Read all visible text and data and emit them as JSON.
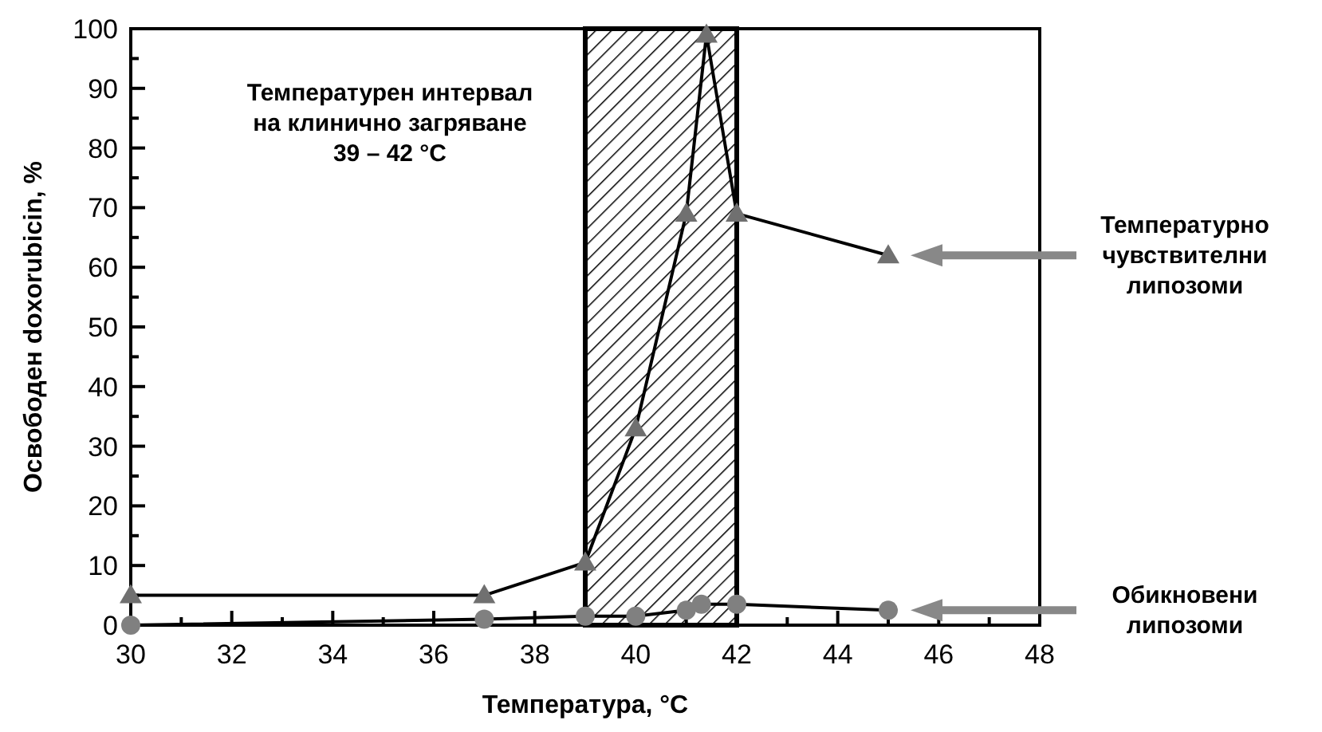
{
  "chart_data": {
    "type": "line",
    "xlabel": "Температура, °C",
    "ylabel": "Освободен doxorubicin, %",
    "xlim": [
      30,
      48
    ],
    "ylim": [
      0,
      100
    ],
    "xticks": [
      30,
      {
        "value": 31,
        "label": null
      },
      32,
      {
        "value": 33,
        "label": null
      },
      34,
      {
        "value": 35,
        "label": null
      },
      36,
      {
        "value": 37,
        "label": null
      },
      38,
      {
        "value": 39,
        "label": null
      },
      40,
      {
        "value": 41,
        "label": null
      },
      42,
      {
        "value": 43,
        "label": null
      },
      44,
      {
        "value": 45,
        "label": null
      },
      46,
      {
        "value": 47,
        "label": null
      },
      48
    ],
    "yticks": [
      0,
      {
        "value": 5,
        "label": null
      },
      10,
      {
        "value": 15,
        "label": null
      },
      20,
      {
        "value": 25,
        "label": null
      },
      30,
      {
        "value": 35,
        "label": null
      },
      40,
      {
        "value": 45,
        "label": null
      },
      50,
      {
        "value": 55,
        "label": null
      },
      60,
      {
        "value": 65,
        "label": null
      },
      70,
      {
        "value": 75,
        "label": null
      },
      80,
      {
        "value": 85,
        "label": null
      },
      90,
      {
        "value": 95,
        "label": null
      },
      100
    ],
    "grid": false,
    "bands": [
      {
        "axis": "x",
        "from": 39,
        "to": 42,
        "label": "Температурен интервал на клинично загряване 39 – 42 °C"
      }
    ],
    "series": [
      {
        "name": "Температурно чувствителни липозоми",
        "color": "#707070",
        "marker": "triangle",
        "x": [
          30,
          37,
          39,
          40,
          41,
          41.4,
          42,
          45
        ],
        "values": [
          5,
          5,
          10.5,
          33,
          69,
          99,
          69,
          62
        ]
      },
      {
        "name": "Обикновени липозоми",
        "color": "#808080",
        "marker": "circle",
        "x": [
          30,
          37,
          39,
          40,
          41,
          41.3,
          42,
          45
        ],
        "values": [
          0,
          1,
          1.5,
          1.5,
          2.5,
          3.5,
          3.5,
          2.5
        ]
      }
    ]
  }
}
